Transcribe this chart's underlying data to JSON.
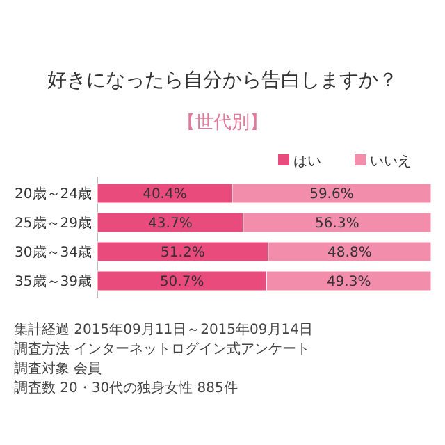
{
  "chart_data": {
    "type": "bar",
    "orientation": "horizontal",
    "stacked": true,
    "title": "好きになったら自分から告白しますか？",
    "subtitle": "【世代別】",
    "categories": [
      "20歳～24歳",
      "25歳～29歳",
      "30歳～34歳",
      "35歳～39歳"
    ],
    "series": [
      {
        "name": "はい",
        "color": "#e94b7c",
        "values": [
          40.4,
          43.7,
          51.2,
          50.7
        ],
        "value_labels": [
          "40.4%",
          "43.7%",
          "51.2%",
          "50.7%"
        ]
      },
      {
        "name": "いいえ",
        "color": "#f28dab",
        "values": [
          59.6,
          56.3,
          48.8,
          49.3
        ],
        "value_labels": [
          "59.6%",
          "56.3%",
          "48.8%",
          "49.3%"
        ]
      }
    ],
    "legend": "top right",
    "annotations": [
      "集計経過 2015年09月11日～2015年09月14日",
      "調査方法 インターネットログイン式アンケート",
      "調査対象 会員",
      "調査数 20・30代の独身女性 885件"
    ]
  }
}
